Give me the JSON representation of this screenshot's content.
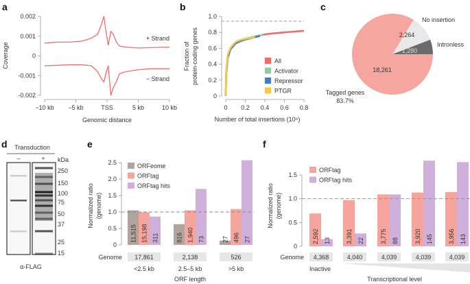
{
  "panels": {
    "a": "a",
    "b": "b",
    "c": "c",
    "d": "d",
    "e": "e",
    "f": "f"
  },
  "colors": {
    "red": "#f26b6b",
    "orfeome": "#b0a49c",
    "orftag": "#f5a59c",
    "hits": "#cfb0da",
    "activator": "#8fcc9f",
    "repressor": "#3e7fc1",
    "ptgr": "#f7c84a",
    "no_insertion": "#e9e9eb",
    "intronless": "#6b6b6b",
    "genome_box": "#e6e6e6"
  },
  "chart_data": [
    {
      "id": "a",
      "type": "line",
      "xlabel": "Genomic distance",
      "ylabel": "Coverage",
      "xlim": [
        -10,
        10
      ],
      "ylim": [
        -0.002,
        0.002
      ],
      "xticks": [
        {
          "v": -10,
          "label": "−10 kb"
        },
        {
          "v": -5,
          "label": "−5 kb"
        },
        {
          "v": 0,
          "label": "TSS"
        },
        {
          "v": 5,
          "label": "5 kb"
        },
        {
          "v": 10,
          "label": "10 kb"
        }
      ],
      "yticks": [
        {
          "v": 0.002,
          "label": "0.002"
        },
        {
          "v": 0.001,
          "label": "0.001"
        },
        {
          "v": 0,
          "label": "0"
        },
        {
          "v": -0.001,
          "label": "-0.001"
        },
        {
          "v": -0.002,
          "label": "-0.002"
        }
      ],
      "series": [
        {
          "name": "+ Strand",
          "x": [
            -10,
            -8,
            -6,
            -4,
            -2.5,
            -1.5,
            -1,
            -0.5,
            -0.2,
            0.2,
            0.6,
            1,
            1.5,
            2,
            3,
            5,
            7,
            10
          ],
          "y": [
            0.00065,
            0.0007,
            0.0007,
            0.00075,
            0.0009,
            0.0011,
            0.0015,
            0.002,
            0.0013,
            0.00055,
            0.00125,
            0.0011,
            0.0007,
            0.0005,
            0.00045,
            0.0004,
            0.00042,
            0.00045
          ]
        },
        {
          "name": "− Strand",
          "x": [
            -10,
            -8,
            -6,
            -4,
            -2.5,
            -1.5,
            -1,
            -0.5,
            -0.2,
            0.2,
            0.6,
            1,
            1.5,
            2,
            3,
            5,
            7,
            10
          ],
          "y": [
            -0.0005,
            -0.00048,
            -0.00045,
            -0.00045,
            -0.0005,
            -0.0008,
            -0.0011,
            -0.00133,
            -0.0009,
            -0.0005,
            -0.002,
            -0.0016,
            -0.0013,
            -0.0009,
            -0.0008,
            -0.0007,
            -0.00065,
            -0.00065
          ]
        }
      ]
    },
    {
      "id": "b",
      "type": "line",
      "xlabel": "Number of total insertions (10⁶)",
      "ylabel": [
        "Fraction of",
        "protein-coding genes"
      ],
      "xlim": [
        0,
        0.8
      ],
      "ylim": [
        0,
        1.0
      ],
      "xticks": [
        "0",
        "0.2",
        "0.4",
        "0.6",
        "0.8"
      ],
      "yticks": [
        "0",
        "0.2",
        "0.4",
        "0.6",
        "0.8",
        "1.0"
      ],
      "reference_line": 0.94,
      "series": [
        {
          "name": "All",
          "x": [
            0,
            0.005,
            0.02,
            0.05,
            0.1,
            0.15,
            0.2,
            0.3,
            0.4,
            0.5,
            0.6,
            0.7,
            0.8
          ],
          "y": [
            0,
            0.3,
            0.5,
            0.6,
            0.67,
            0.7,
            0.72,
            0.75,
            0.775,
            0.79,
            0.8,
            0.81,
            0.82
          ]
        },
        {
          "name": "Activator",
          "x": [
            0,
            0.005,
            0.02,
            0.05,
            0.1,
            0.15,
            0.2,
            0.3,
            0.38
          ],
          "y": [
            0,
            0.3,
            0.5,
            0.6,
            0.67,
            0.7,
            0.72,
            0.75,
            0.77
          ]
        },
        {
          "name": "Repressor",
          "x": [
            0,
            0.005,
            0.02,
            0.05,
            0.1,
            0.15,
            0.2,
            0.3,
            0.35
          ],
          "y": [
            0,
            0.28,
            0.48,
            0.59,
            0.66,
            0.69,
            0.71,
            0.74,
            0.755
          ]
        },
        {
          "name": "PTGR",
          "x": [
            0,
            0.005,
            0.02,
            0.05,
            0.1,
            0.15,
            0.2,
            0.3
          ],
          "y": [
            0,
            0.32,
            0.52,
            0.61,
            0.68,
            0.705,
            0.72,
            0.74
          ]
        }
      ]
    },
    {
      "id": "c",
      "type": "pie",
      "slices": [
        {
          "name": "Intronless",
          "value": 1280,
          "label": "1,280"
        },
        {
          "name": "No insertion",
          "value": 2264,
          "label": "2,264"
        },
        {
          "name": "Tagged genes",
          "value": 18261,
          "label": "18,261",
          "percent": "83.7%"
        }
      ]
    },
    {
      "id": "e",
      "type": "bar",
      "xlabel": "ORF length",
      "ylabel": [
        "Normalized ratio",
        "(genome)"
      ],
      "ylim": [
        0,
        2.5
      ],
      "yticks": [
        "0",
        "0.5",
        "1.0",
        "1.5",
        "2.0",
        "2.5"
      ],
      "reference_line": 1.0,
      "categories": [
        "<2.5 kb",
        "2.5–5 kb",
        ">5 kb"
      ],
      "genome_label": "Genome",
      "genome": [
        "17,861",
        "2,138",
        "526"
      ],
      "series": [
        {
          "name": "ORFeome",
          "values": [
            1.05,
            0.63,
            0.13
          ],
          "counts": [
            "11,515",
            "816",
            "27"
          ]
        },
        {
          "name": "ORFtag",
          "values": [
            0.99,
            1.05,
            1.09
          ],
          "counts": [
            "15,198",
            "1,940",
            "496"
          ]
        },
        {
          "name": "ORFtag hits",
          "values": [
            0.86,
            1.7,
            2.57
          ],
          "counts": [
            "311",
            "73",
            "27"
          ]
        }
      ]
    },
    {
      "id": "f",
      "type": "bar",
      "xlabel": "Transcriptional level",
      "ylabel": [
        "Normalized ratio",
        "(genome)"
      ],
      "ylim": [
        0,
        1.8
      ],
      "yticks": [
        "0",
        "0.5",
        "1.0",
        "1.5"
      ],
      "reference_line": 1.0,
      "categories": [
        "Inactive",
        "",
        "",
        "",
        ""
      ],
      "genome_label": "Genome",
      "genome": [
        "4,368",
        "4,040",
        "4,039",
        "4,039",
        "4,039"
      ],
      "series": [
        {
          "name": "ORFtag",
          "values": [
            0.69,
            0.97,
            1.09,
            1.13,
            1.14
          ],
          "counts": [
            "2,592",
            "3,391",
            "3,775",
            "3,920",
            "3,956"
          ]
        },
        {
          "name": "ORFtag hits",
          "values": [
            0.15,
            0.27,
            1.09,
            1.8,
            1.77
          ],
          "counts": [
            "13",
            "22",
            "88",
            "145",
            "143"
          ]
        }
      ]
    }
  ],
  "blot": {
    "header": "Transduction",
    "lanes": [
      "–",
      "+"
    ],
    "unit": "kDa",
    "markers": [
      "250",
      "150",
      "100",
      "75",
      "50",
      "37",
      "25",
      "15"
    ],
    "antibody": "α-FLAG"
  }
}
